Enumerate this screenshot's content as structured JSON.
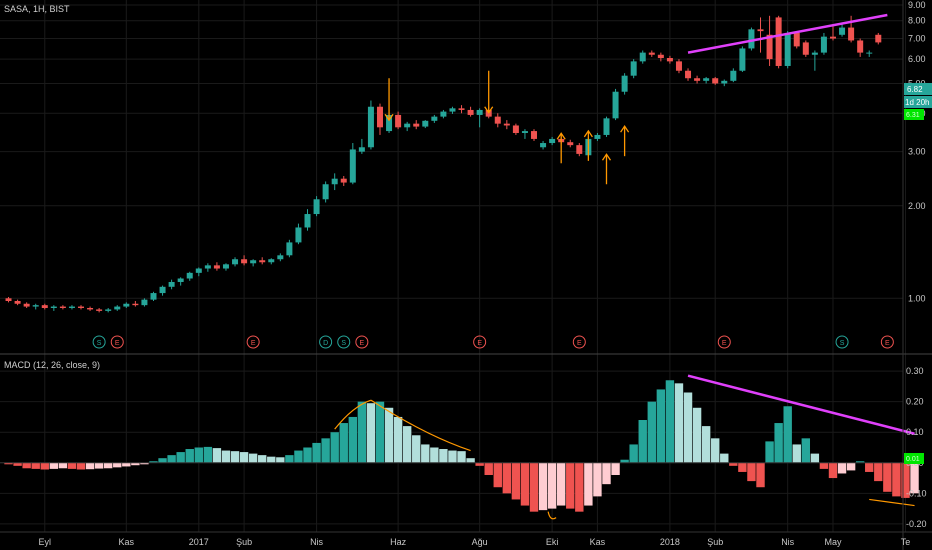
{
  "colors": {
    "background": "#000000",
    "up": "#26a69a",
    "down": "#ef5350",
    "hist_pos_strong": "#26a69a",
    "hist_pos_weak": "#b2dfdb",
    "hist_neg_strong": "#ef5350",
    "hist_neg_weak": "#ffcdd2",
    "trendline": "#e040fb",
    "arrow": "#ff9800",
    "last_price_bg": "#26a69a",
    "macd_last_bg": "#00e600",
    "grid": "#1a1a1a"
  },
  "chart_data": [
    {
      "type": "candlestick",
      "title": "SASA, 1H, BIST",
      "y_scale": "log",
      "ylim": [
        0.85,
        9.0
      ],
      "y_ticks": [
        "1.00",
        "2.00",
        "3.00",
        "4.00",
        "5.00",
        "6.00",
        "7.00",
        "8.00",
        "9.00"
      ],
      "x_ticks": [
        "Eyl",
        "Kas",
        "2017",
        "Şub",
        "Nis",
        "Haz",
        "Ağu",
        "Eki",
        "Kas",
        "2018",
        "Şub",
        "Nis",
        "May",
        "Te"
      ],
      "last_price": "6.82",
      "countdown": "1d 20h",
      "third_label": "6.31",
      "candles": [
        {
          "o": 1.0,
          "h": 1.01,
          "l": 0.97,
          "c": 0.98
        },
        {
          "o": 0.98,
          "h": 0.99,
          "l": 0.95,
          "c": 0.96
        },
        {
          "o": 0.96,
          "h": 0.97,
          "l": 0.93,
          "c": 0.94
        },
        {
          "o": 0.94,
          "h": 0.96,
          "l": 0.92,
          "c": 0.95
        },
        {
          "o": 0.95,
          "h": 0.96,
          "l": 0.92,
          "c": 0.93
        },
        {
          "o": 0.93,
          "h": 0.95,
          "l": 0.91,
          "c": 0.94
        },
        {
          "o": 0.94,
          "h": 0.95,
          "l": 0.92,
          "c": 0.93
        },
        {
          "o": 0.93,
          "h": 0.95,
          "l": 0.92,
          "c": 0.94
        },
        {
          "o": 0.94,
          "h": 0.95,
          "l": 0.92,
          "c": 0.93
        },
        {
          "o": 0.93,
          "h": 0.94,
          "l": 0.91,
          "c": 0.92
        },
        {
          "o": 0.92,
          "h": 0.93,
          "l": 0.9,
          "c": 0.91
        },
        {
          "o": 0.91,
          "h": 0.93,
          "l": 0.9,
          "c": 0.92
        },
        {
          "o": 0.92,
          "h": 0.95,
          "l": 0.91,
          "c": 0.94
        },
        {
          "o": 0.94,
          "h": 0.97,
          "l": 0.93,
          "c": 0.96
        },
        {
          "o": 0.96,
          "h": 0.98,
          "l": 0.94,
          "c": 0.95
        },
        {
          "o": 0.95,
          "h": 1.0,
          "l": 0.94,
          "c": 0.99
        },
        {
          "o": 0.99,
          "h": 1.05,
          "l": 0.98,
          "c": 1.04
        },
        {
          "o": 1.04,
          "h": 1.1,
          "l": 1.02,
          "c": 1.09
        },
        {
          "o": 1.09,
          "h": 1.15,
          "l": 1.07,
          "c": 1.13
        },
        {
          "o": 1.13,
          "h": 1.17,
          "l": 1.1,
          "c": 1.16
        },
        {
          "o": 1.16,
          "h": 1.22,
          "l": 1.14,
          "c": 1.21
        },
        {
          "o": 1.21,
          "h": 1.26,
          "l": 1.18,
          "c": 1.25
        },
        {
          "o": 1.25,
          "h": 1.3,
          "l": 1.22,
          "c": 1.28
        },
        {
          "o": 1.28,
          "h": 1.31,
          "l": 1.23,
          "c": 1.25
        },
        {
          "o": 1.25,
          "h": 1.3,
          "l": 1.23,
          "c": 1.29
        },
        {
          "o": 1.29,
          "h": 1.36,
          "l": 1.27,
          "c": 1.34
        },
        {
          "o": 1.34,
          "h": 1.38,
          "l": 1.28,
          "c": 1.3
        },
        {
          "o": 1.3,
          "h": 1.34,
          "l": 1.27,
          "c": 1.33
        },
        {
          "o": 1.33,
          "h": 1.36,
          "l": 1.29,
          "c": 1.31
        },
        {
          "o": 1.31,
          "h": 1.35,
          "l": 1.29,
          "c": 1.34
        },
        {
          "o": 1.34,
          "h": 1.4,
          "l": 1.32,
          "c": 1.38
        },
        {
          "o": 1.38,
          "h": 1.55,
          "l": 1.36,
          "c": 1.52
        },
        {
          "o": 1.52,
          "h": 1.75,
          "l": 1.5,
          "c": 1.7
        },
        {
          "o": 1.7,
          "h": 1.95,
          "l": 1.66,
          "c": 1.88
        },
        {
          "o": 1.88,
          "h": 2.15,
          "l": 1.85,
          "c": 2.1
        },
        {
          "o": 2.1,
          "h": 2.4,
          "l": 2.05,
          "c": 2.35
        },
        {
          "o": 2.35,
          "h": 2.55,
          "l": 2.25,
          "c": 2.45
        },
        {
          "o": 2.45,
          "h": 2.5,
          "l": 2.32,
          "c": 2.38
        },
        {
          "o": 2.38,
          "h": 3.2,
          "l": 2.35,
          "c": 3.05
        },
        {
          "o": 3.0,
          "h": 3.3,
          "l": 2.95,
          "c": 3.1
        },
        {
          "o": 3.1,
          "h": 4.4,
          "l": 3.05,
          "c": 4.2
        },
        {
          "o": 4.2,
          "h": 4.3,
          "l": 3.4,
          "c": 3.6
        },
        {
          "o": 3.5,
          "h": 4.1,
          "l": 3.45,
          "c": 3.95
        },
        {
          "o": 3.95,
          "h": 4.05,
          "l": 3.55,
          "c": 3.6
        },
        {
          "o": 3.6,
          "h": 3.75,
          "l": 3.5,
          "c": 3.7
        },
        {
          "o": 3.7,
          "h": 3.8,
          "l": 3.55,
          "c": 3.62
        },
        {
          "o": 3.62,
          "h": 3.8,
          "l": 3.58,
          "c": 3.78
        },
        {
          "o": 3.78,
          "h": 3.95,
          "l": 3.72,
          "c": 3.9
        },
        {
          "o": 3.9,
          "h": 4.1,
          "l": 3.85,
          "c": 4.05
        },
        {
          "o": 4.05,
          "h": 4.2,
          "l": 3.98,
          "c": 4.15
        },
        {
          "o": 4.15,
          "h": 4.25,
          "l": 4.0,
          "c": 4.1
        },
        {
          "o": 4.1,
          "h": 4.2,
          "l": 3.9,
          "c": 3.95
        },
        {
          "o": 3.95,
          "h": 4.15,
          "l": 3.6,
          "c": 4.1
        },
        {
          "o": 4.1,
          "h": 4.2,
          "l": 3.85,
          "c": 3.9
        },
        {
          "o": 3.9,
          "h": 4.0,
          "l": 3.6,
          "c": 3.7
        },
        {
          "o": 3.7,
          "h": 3.8,
          "l": 3.55,
          "c": 3.65
        },
        {
          "o": 3.65,
          "h": 3.7,
          "l": 3.4,
          "c": 3.45
        },
        {
          "o": 3.45,
          "h": 3.55,
          "l": 3.3,
          "c": 3.5
        },
        {
          "o": 3.5,
          "h": 3.55,
          "l": 3.25,
          "c": 3.3
        },
        {
          "o": 3.1,
          "h": 3.25,
          "l": 3.05,
          "c": 3.2
        },
        {
          "o": 3.2,
          "h": 3.35,
          "l": 3.15,
          "c": 3.3
        },
        {
          "o": 3.3,
          "h": 3.38,
          "l": 3.18,
          "c": 3.22
        },
        {
          "o": 3.22,
          "h": 3.28,
          "l": 3.1,
          "c": 3.15
        },
        {
          "o": 3.15,
          "h": 3.2,
          "l": 2.9,
          "c": 2.95
        },
        {
          "o": 2.92,
          "h": 3.35,
          "l": 2.88,
          "c": 3.3
        },
        {
          "o": 3.3,
          "h": 3.45,
          "l": 3.25,
          "c": 3.4
        },
        {
          "o": 3.4,
          "h": 3.9,
          "l": 3.35,
          "c": 3.85
        },
        {
          "o": 3.85,
          "h": 4.8,
          "l": 3.8,
          "c": 4.7
        },
        {
          "o": 4.7,
          "h": 5.4,
          "l": 4.6,
          "c": 5.3
        },
        {
          "o": 5.3,
          "h": 6.0,
          "l": 5.2,
          "c": 5.9
        },
        {
          "o": 5.9,
          "h": 6.4,
          "l": 5.8,
          "c": 6.3
        },
        {
          "o": 6.3,
          "h": 6.4,
          "l": 6.1,
          "c": 6.2
        },
        {
          "o": 6.2,
          "h": 6.3,
          "l": 5.9,
          "c": 6.05
        },
        {
          "o": 6.05,
          "h": 6.15,
          "l": 5.8,
          "c": 5.9
        },
        {
          "o": 5.9,
          "h": 6.0,
          "l": 5.4,
          "c": 5.5
        },
        {
          "o": 5.5,
          "h": 5.6,
          "l": 5.1,
          "c": 5.2
        },
        {
          "o": 5.2,
          "h": 5.3,
          "l": 5.0,
          "c": 5.1
        },
        {
          "o": 5.1,
          "h": 5.25,
          "l": 5.0,
          "c": 5.2
        },
        {
          "o": 5.2,
          "h": 5.25,
          "l": 4.95,
          "c": 5.0
        },
        {
          "o": 5.0,
          "h": 5.15,
          "l": 4.9,
          "c": 5.1
        },
        {
          "o": 5.1,
          "h": 5.6,
          "l": 5.05,
          "c": 5.5
        },
        {
          "o": 5.5,
          "h": 6.6,
          "l": 5.45,
          "c": 6.5
        },
        {
          "o": 6.5,
          "h": 7.6,
          "l": 6.4,
          "c": 7.5
        },
        {
          "o": 7.5,
          "h": 8.2,
          "l": 6.3,
          "c": 7.4
        },
        {
          "o": 7.2,
          "h": 8.3,
          "l": 5.7,
          "c": 6.0
        },
        {
          "o": 8.2,
          "h": 8.3,
          "l": 5.6,
          "c": 5.7
        },
        {
          "o": 5.7,
          "h": 7.4,
          "l": 5.6,
          "c": 7.3
        },
        {
          "o": 7.3,
          "h": 7.4,
          "l": 6.5,
          "c": 6.6
        },
        {
          "o": 6.8,
          "h": 6.9,
          "l": 6.1,
          "c": 6.2
        },
        {
          "o": 6.2,
          "h": 6.4,
          "l": 5.5,
          "c": 6.3
        },
        {
          "o": 6.3,
          "h": 7.3,
          "l": 6.2,
          "c": 7.1
        },
        {
          "o": 7.1,
          "h": 7.8,
          "l": 6.9,
          "c": 7.0
        },
        {
          "o": 7.2,
          "h": 7.9,
          "l": 7.1,
          "c": 7.6
        },
        {
          "o": 7.6,
          "h": 8.3,
          "l": 6.8,
          "c": 6.9
        },
        {
          "o": 6.9,
          "h": 7.0,
          "l": 6.1,
          "c": 6.3
        },
        {
          "o": 6.3,
          "h": 6.4,
          "l": 6.1,
          "c": 6.3
        },
        {
          "o": 7.2,
          "h": 7.3,
          "l": 6.7,
          "c": 6.8
        }
      ],
      "annotations": {
        "trendline": {
          "from": [
            75,
            6.3
          ],
          "to": [
            97,
            8.35
          ]
        },
        "arrows_down": [
          [
            42,
            5.2
          ],
          [
            53,
            5.5
          ]
        ],
        "arrows_up": [
          [
            61,
            2.75
          ],
          [
            64,
            2.8
          ],
          [
            66,
            2.35
          ],
          [
            68,
            2.9
          ]
        ]
      },
      "event_markers": [
        {
          "index": 10,
          "label": "S",
          "kind": "split"
        },
        {
          "index": 12,
          "label": "E",
          "kind": "earnings"
        },
        {
          "index": 27,
          "label": "E",
          "kind": "earnings"
        },
        {
          "index": 35,
          "label": "D",
          "kind": "dividend"
        },
        {
          "index": 37,
          "label": "S",
          "kind": "split"
        },
        {
          "index": 39,
          "label": "E",
          "kind": "earnings"
        },
        {
          "index": 52,
          "label": "E",
          "kind": "earnings"
        },
        {
          "index": 63,
          "label": "E",
          "kind": "earnings"
        },
        {
          "index": 79,
          "label": "E",
          "kind": "earnings"
        },
        {
          "index": 92,
          "label": "S",
          "kind": "split"
        },
        {
          "index": 97,
          "label": "E",
          "kind": "earnings"
        }
      ]
    },
    {
      "type": "bar",
      "title": "MACD (12, 26, close, 9)",
      "ylim": [
        -0.22,
        0.32
      ],
      "y_ticks": [
        "0.30",
        "0.20",
        "0.10",
        "0.00",
        "-0.10",
        "-0.20"
      ],
      "last_value": "0.01",
      "values": [
        -0.005,
        -0.01,
        -0.018,
        -0.02,
        -0.022,
        -0.02,
        -0.018,
        -0.02,
        -0.022,
        -0.021,
        -0.019,
        -0.018,
        -0.015,
        -0.012,
        -0.008,
        -0.005,
        0.005,
        0.015,
        0.025,
        0.035,
        0.045,
        0.05,
        0.052,
        0.048,
        0.04,
        0.038,
        0.035,
        0.03,
        0.025,
        0.02,
        0.018,
        0.025,
        0.04,
        0.05,
        0.065,
        0.08,
        0.1,
        0.13,
        0.15,
        0.2,
        0.195,
        0.2,
        0.18,
        0.15,
        0.12,
        0.09,
        0.06,
        0.05,
        0.045,
        0.04,
        0.038,
        0.015,
        -0.01,
        -0.04,
        -0.08,
        -0.1,
        -0.12,
        -0.14,
        -0.16,
        -0.155,
        -0.15,
        -0.14,
        -0.15,
        -0.16,
        -0.14,
        -0.11,
        -0.07,
        -0.04,
        0.01,
        0.06,
        0.14,
        0.2,
        0.24,
        0.27,
        0.26,
        0.23,
        0.18,
        0.12,
        0.08,
        0.03,
        -0.01,
        -0.03,
        -0.06,
        -0.08,
        0.07,
        0.13,
        0.185,
        0.06,
        0.08,
        0.03,
        -0.02,
        -0.05,
        -0.035,
        -0.025,
        0.005,
        -0.03,
        -0.06,
        -0.095,
        -0.11,
        -0.115,
        -0.1
      ],
      "trendline": {
        "from": [
          75,
          0.285
        ],
        "to": [
          100,
          0.095
        ]
      },
      "arrow_annotations": {
        "hump_from": [
          36,
          0.11
        ],
        "hump_peak": [
          40,
          0.205
        ],
        "hump_to": [
          51,
          0.04
        ],
        "trough_arrow": [
          60,
          -0.16
        ],
        "tail_from": [
          95,
          -0.12
        ],
        "tail_to": [
          100,
          -0.14
        ]
      }
    }
  ]
}
